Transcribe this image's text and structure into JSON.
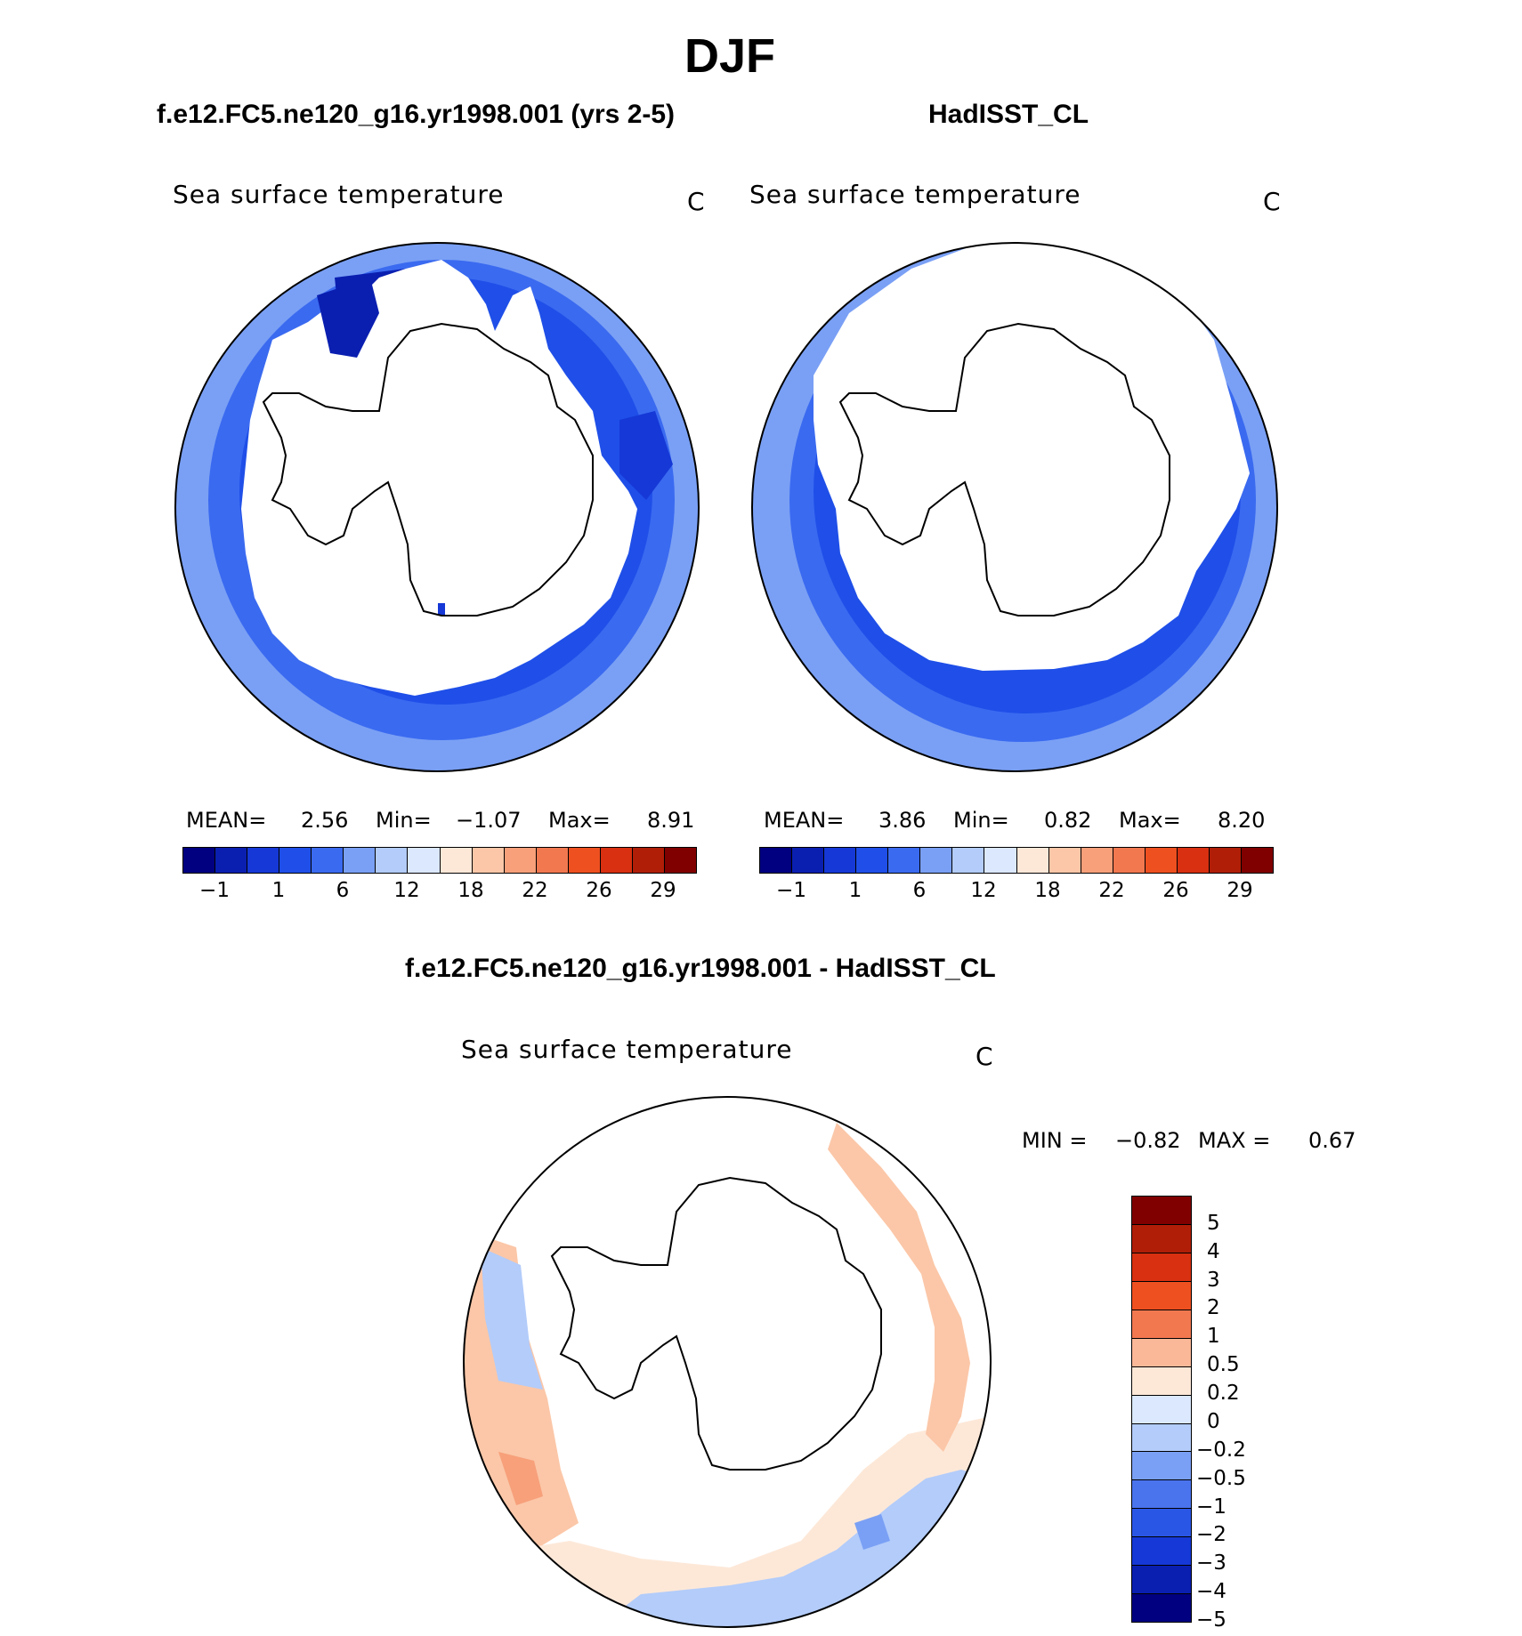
{
  "page_title": "DJF",
  "panels": {
    "model": {
      "title": "f.e12.FC5.ne120_g16.yr1998.001 (yrs 2-5)",
      "variable": "Sea surface temperature",
      "units": "C",
      "stats": {
        "mean_label": "MEAN=",
        "mean": "2.56",
        "min_label": "Min=",
        "min": "−1.07",
        "max_label": "Max=",
        "max": "8.91"
      }
    },
    "obs": {
      "title": "HadISST_CL",
      "variable": "Sea surface temperature",
      "units": "C",
      "stats": {
        "mean_label": "MEAN=",
        "mean": "3.86",
        "min_label": "Min=",
        "min": "0.82",
        "max_label": "Max=",
        "max": "8.20"
      }
    },
    "diff": {
      "title": "f.e12.FC5.ne120_g16.yr1998.001 - HadISST_CL",
      "variable": "Sea surface temperature",
      "units": "C",
      "stats": {
        "min_label": "MIN =",
        "min": "−0.82",
        "max_label": "MAX =",
        "max": "0.67"
      }
    }
  },
  "colorbar_abs": {
    "colors": [
      "#000080",
      "#0a1fb0",
      "#1538d6",
      "#1f4fe8",
      "#3a6af0",
      "#7aa0f5",
      "#b3ccfa",
      "#dbe8fd",
      "#fde8d8",
      "#fbc7a8",
      "#f7a07a",
      "#f27850",
      "#ef5020",
      "#d83010",
      "#b01e08",
      "#800000"
    ],
    "tick_labels": [
      "−1",
      "1",
      "6",
      "12",
      "18",
      "22",
      "26",
      "29"
    ]
  },
  "colorbar_diff": {
    "colors": [
      "#800000",
      "#b01e08",
      "#d83010",
      "#ef5020",
      "#f27850",
      "#fbb898",
      "#fde8d8",
      "#dbe8fd",
      "#b3ccfa",
      "#7aa0f5",
      "#4a74ee",
      "#2a56e6",
      "#1538d6",
      "#0a1fb0",
      "#000080"
    ],
    "tick_labels": [
      "5",
      "4",
      "3",
      "2",
      "1",
      "0.5",
      "0.2",
      "0",
      "−0.2",
      "−0.5",
      "−1",
      "−2",
      "−3",
      "−4",
      "−5"
    ]
  }
}
